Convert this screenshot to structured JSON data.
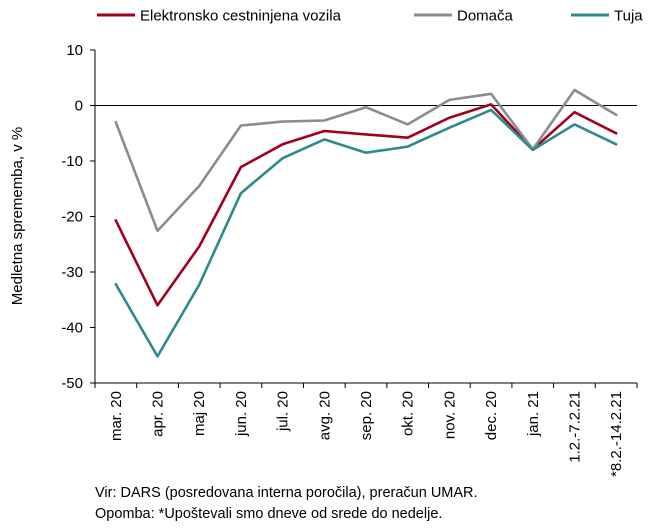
{
  "chart_data": {
    "type": "line",
    "categories": [
      "mar. 20",
      "apr. 20",
      "maj 20",
      "jun. 20",
      "jul. 20",
      "avg. 20",
      "sep. 20",
      "okt. 20",
      "nov. 20",
      "dec. 20",
      "jan. 21",
      "1.2.-7.2.21",
      "*8.2.-14.2.21"
    ],
    "series": [
      {
        "name": "Elektronsko cestninjena vozila",
        "color": "#a3001e",
        "values": [
          -20.7,
          -36.0,
          -25.4,
          -11.1,
          -7.0,
          -4.6,
          -5.2,
          -5.8,
          -2.2,
          0.2,
          -7.9,
          -1.2,
          -5.0
        ]
      },
      {
        "name": "Domača",
        "color": "#8c8c8c",
        "values": [
          -3.0,
          -22.6,
          -14.5,
          -3.6,
          -2.9,
          -2.7,
          -0.3,
          -3.4,
          1.0,
          2.1,
          -7.9,
          2.8,
          -1.7
        ]
      },
      {
        "name": "Tuja",
        "color": "#2e8b8b",
        "values": [
          -32.2,
          -45.2,
          -32.3,
          -15.8,
          -9.5,
          -6.1,
          -8.5,
          -7.4,
          -4.0,
          -0.8,
          -8.0,
          -3.4,
          -7.0
        ]
      }
    ],
    "ylabel": "Medletna sprememba, v %",
    "ylim": [
      -50,
      10
    ],
    "yticks": [
      10,
      0,
      -10,
      -20,
      -30,
      -40,
      -50
    ],
    "grid": false,
    "legend": "top"
  },
  "footnotes": {
    "source": "Vir: DARS (posredovana interna poročila), preračun UMAR.",
    "note": "Opomba: *Upoštevali smo dneve od srede do nedelje."
  }
}
